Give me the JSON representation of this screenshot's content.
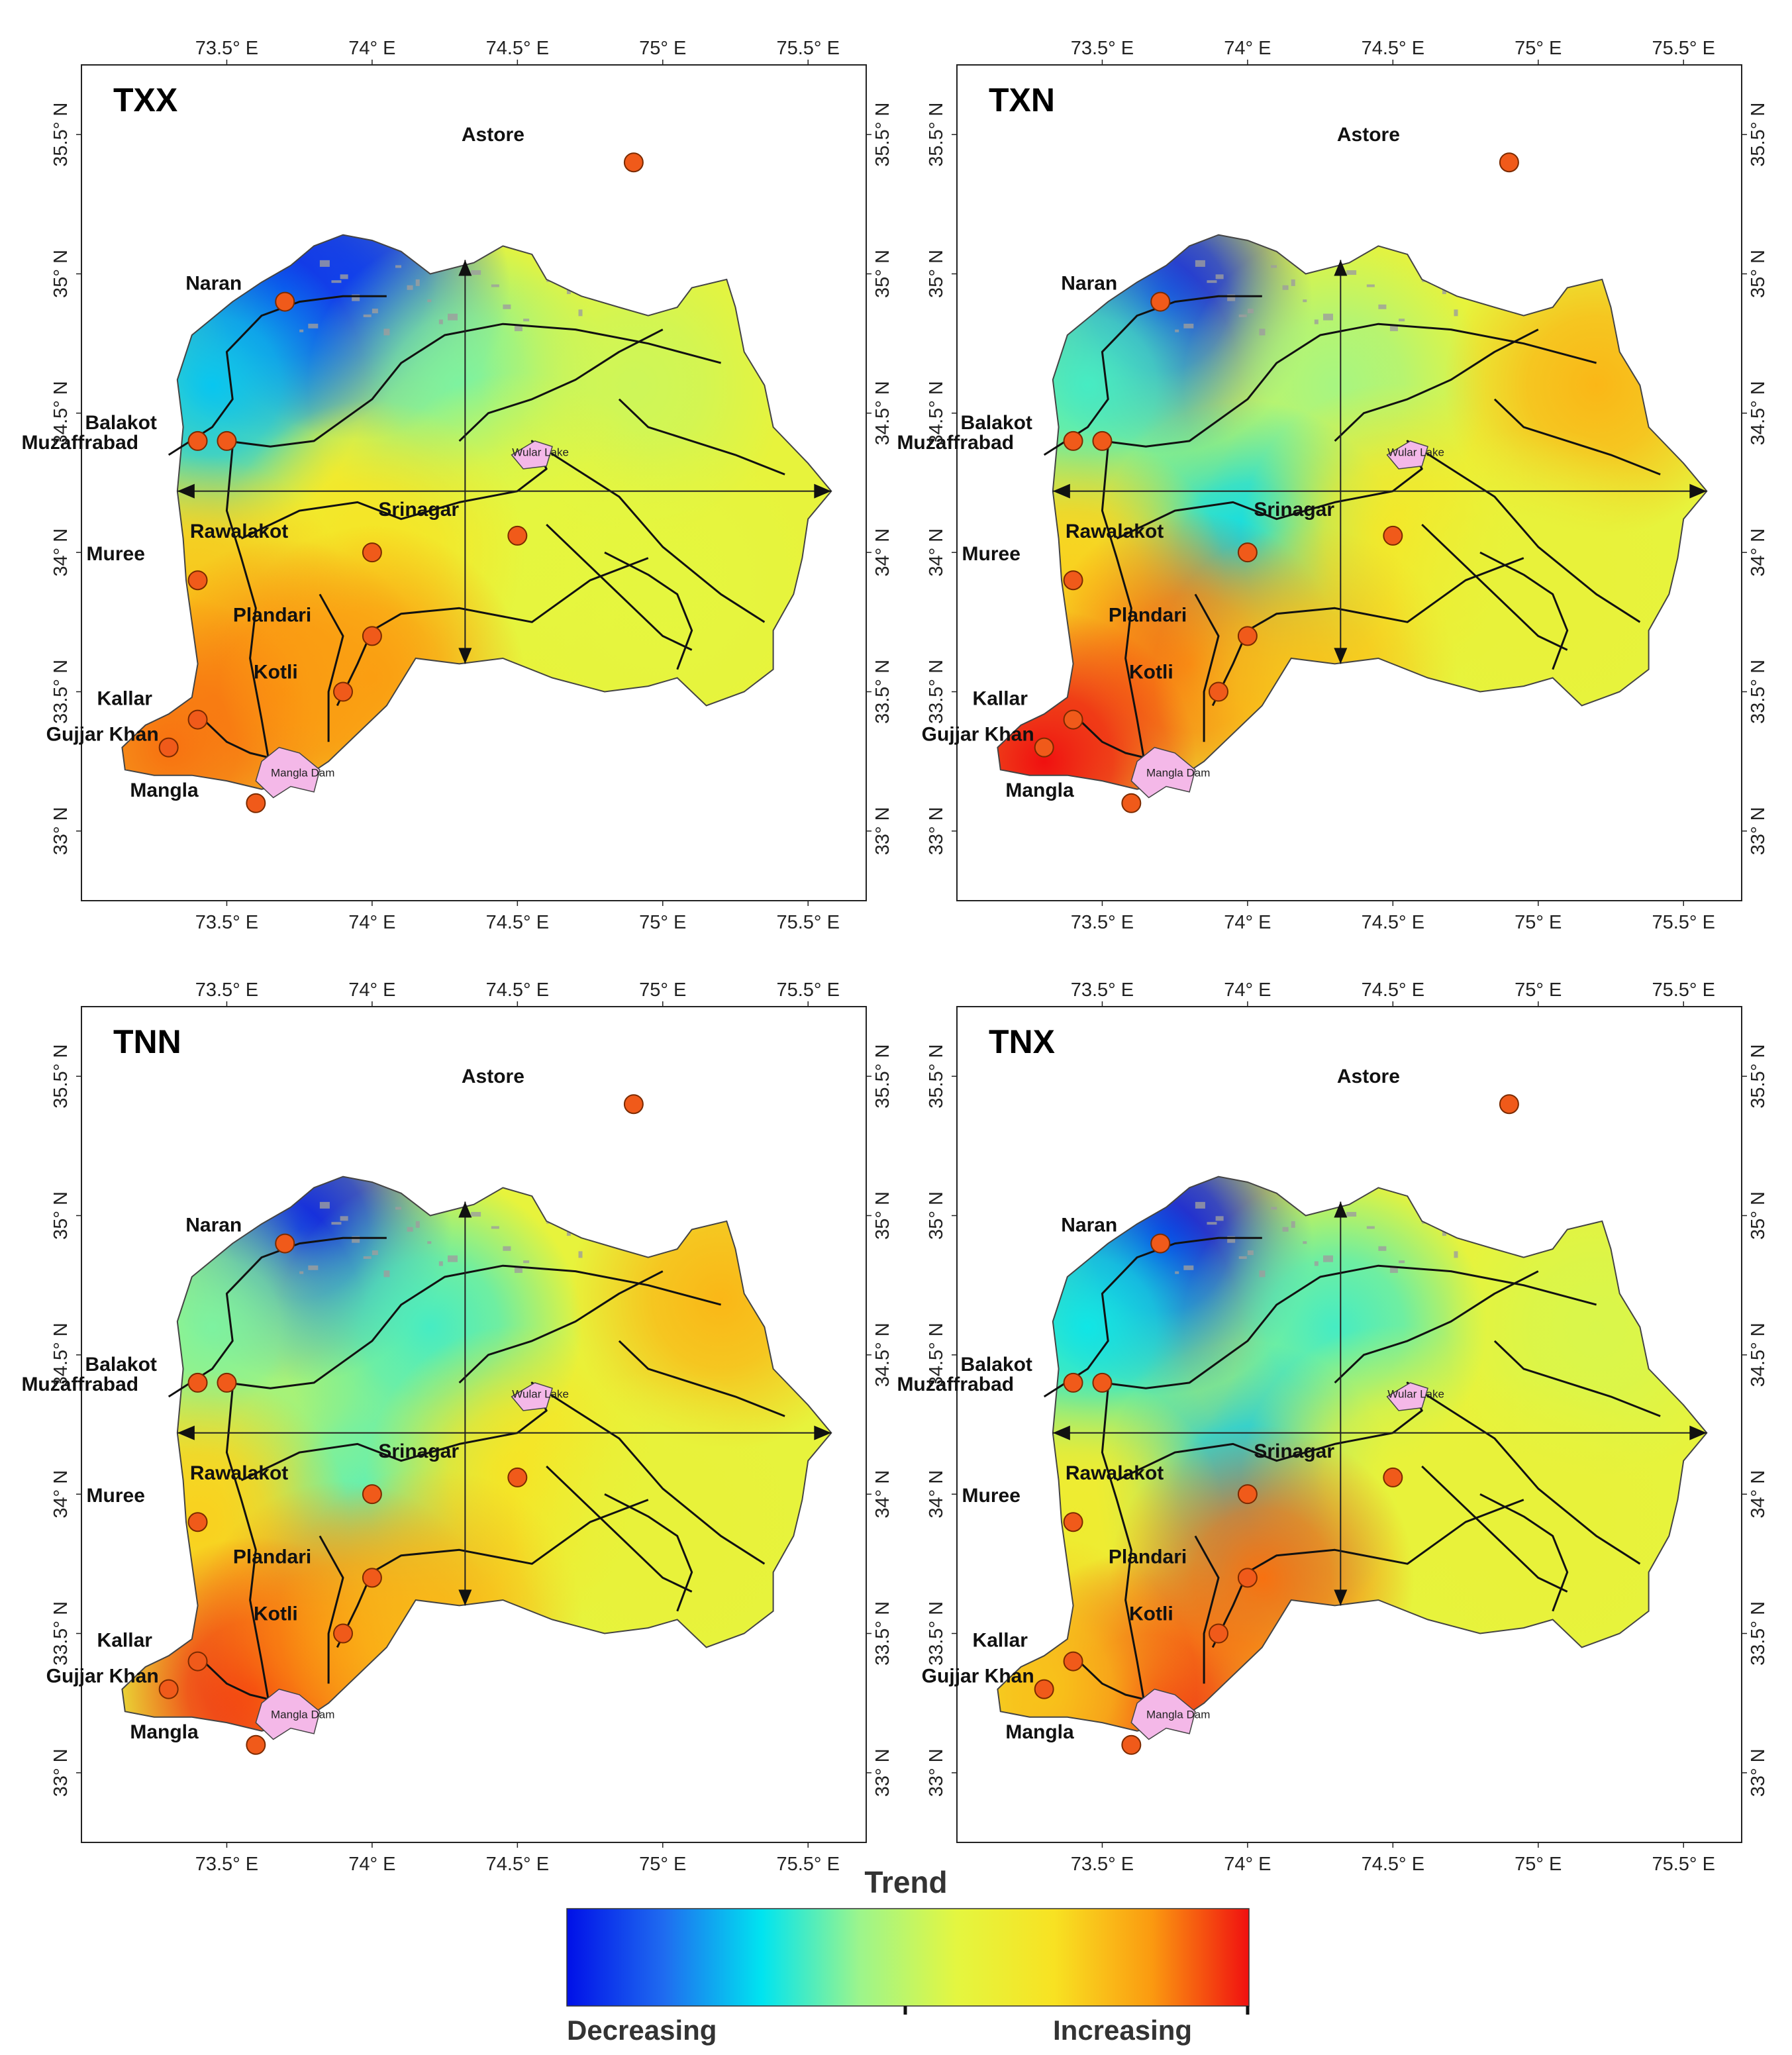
{
  "legend": {
    "title": "Trend",
    "low_label": "Decreasing",
    "high_label": "Increasing",
    "colors": [
      "#0010e8",
      "#1f6cf0",
      "#00e4f0",
      "#9cf58c",
      "#e4f640",
      "#f8e222",
      "#fb9a10",
      "#f01010"
    ]
  },
  "lon_ticks": [
    "73.5° E",
    "74° E",
    "74.5° E",
    "75° E",
    "75.5° E"
  ],
  "lat_ticks": [
    "33° N",
    "33.5° N",
    "34° N",
    "34.5° N",
    "35° N",
    "35.5° N"
  ],
  "lakes": [
    {
      "name": "Wular Lake",
      "lon": 74.55,
      "lat": 34.36
    },
    {
      "name": "Mangla Dam",
      "lon": 73.72,
      "lat": 33.21
    }
  ],
  "stations": [
    {
      "name": "Astore",
      "lon": 74.9,
      "lat": 35.4
    },
    {
      "name": "Naran",
      "lon": 73.7,
      "lat": 34.9
    },
    {
      "name": "Balakot",
      "lon": 73.4,
      "lat": 34.4
    },
    {
      "name": "Muzaffrabad",
      "lon": 73.5,
      "lat": 34.4
    },
    {
      "name": "Srinagar",
      "lon": 74.5,
      "lat": 34.06
    },
    {
      "name": "Rawalakot",
      "lon": 74.0,
      "lat": 34.0
    },
    {
      "name": "Muree",
      "lon": 73.4,
      "lat": 33.9
    },
    {
      "name": "Plandari",
      "lon": 74.0,
      "lat": 33.7
    },
    {
      "name": "Kotli",
      "lon": 73.9,
      "lat": 33.5
    },
    {
      "name": "Kallar",
      "lon": 73.4,
      "lat": 33.4
    },
    {
      "name": "Gujjar Khan",
      "lon": 73.3,
      "lat": 33.3
    },
    {
      "name": "Mangla",
      "lon": 73.6,
      "lat": 33.1
    }
  ],
  "panels": [
    {
      "title": "TXX",
      "trend": [
        {
          "lon": 73.7,
          "lat": 34.95,
          "value": -1.0
        },
        {
          "lon": 73.95,
          "lat": 34.95,
          "value": -0.85
        },
        {
          "lon": 73.45,
          "lat": 34.6,
          "value": -0.5
        },
        {
          "lon": 74.3,
          "lat": 34.6,
          "value": -0.2
        },
        {
          "lon": 74.9,
          "lat": 34.6,
          "value": 0.05
        },
        {
          "lon": 74.5,
          "lat": 34.1,
          "value": 0.15
        },
        {
          "lon": 74.0,
          "lat": 34.0,
          "value": 0.4
        },
        {
          "lon": 73.4,
          "lat": 33.8,
          "value": 0.55
        },
        {
          "lon": 73.7,
          "lat": 33.5,
          "value": 0.75
        },
        {
          "lon": 73.3,
          "lat": 33.3,
          "value": 0.8
        },
        {
          "lon": 74.0,
          "lat": 33.55,
          "value": 0.7
        },
        {
          "lon": 75.0,
          "lat": 33.9,
          "value": 0.15
        }
      ]
    },
    {
      "title": "TXN",
      "trend": [
        {
          "lon": 73.7,
          "lat": 34.9,
          "value": -0.95
        },
        {
          "lon": 73.45,
          "lat": 34.6,
          "value": -0.3
        },
        {
          "lon": 74.3,
          "lat": 34.6,
          "value": -0.1
        },
        {
          "lon": 75.2,
          "lat": 34.6,
          "value": 0.6
        },
        {
          "lon": 74.0,
          "lat": 34.0,
          "value": -0.45
        },
        {
          "lon": 74.5,
          "lat": 34.06,
          "value": 0.35
        },
        {
          "lon": 73.4,
          "lat": 33.9,
          "value": 0.5
        },
        {
          "lon": 73.8,
          "lat": 33.6,
          "value": 0.8
        },
        {
          "lon": 73.3,
          "lat": 33.25,
          "value": 1.0
        },
        {
          "lon": 74.2,
          "lat": 33.55,
          "value": 0.55
        },
        {
          "lon": 75.0,
          "lat": 33.9,
          "value": 0.2
        }
      ]
    },
    {
      "title": "TNN",
      "trend": [
        {
          "lon": 73.75,
          "lat": 34.95,
          "value": -0.95
        },
        {
          "lon": 73.45,
          "lat": 34.6,
          "value": -0.2
        },
        {
          "lon": 74.2,
          "lat": 34.6,
          "value": -0.3
        },
        {
          "lon": 75.2,
          "lat": 34.7,
          "value": 0.6
        },
        {
          "lon": 74.0,
          "lat": 34.0,
          "value": -0.25
        },
        {
          "lon": 74.5,
          "lat": 34.06,
          "value": 0.4
        },
        {
          "lon": 73.4,
          "lat": 33.9,
          "value": 0.5
        },
        {
          "lon": 73.6,
          "lat": 33.3,
          "value": 0.95
        },
        {
          "lon": 73.9,
          "lat": 33.5,
          "value": 0.75
        },
        {
          "lon": 74.2,
          "lat": 33.55,
          "value": 0.6
        },
        {
          "lon": 75.0,
          "lat": 33.9,
          "value": 0.2
        }
      ]
    },
    {
      "title": "TNX",
      "trend": [
        {
          "lon": 73.7,
          "lat": 34.9,
          "value": -1.0
        },
        {
          "lon": 73.45,
          "lat": 34.6,
          "value": -0.4
        },
        {
          "lon": 74.3,
          "lat": 34.6,
          "value": -0.3
        },
        {
          "lon": 75.2,
          "lat": 34.6,
          "value": 0.1
        },
        {
          "lon": 74.0,
          "lat": 34.0,
          "value": -0.5
        },
        {
          "lon": 74.5,
          "lat": 34.06,
          "value": 0.2
        },
        {
          "lon": 73.4,
          "lat": 33.9,
          "value": 0.3
        },
        {
          "lon": 73.65,
          "lat": 33.25,
          "value": 0.95
        },
        {
          "lon": 74.05,
          "lat": 33.7,
          "value": 0.8
        },
        {
          "lon": 73.3,
          "lat": 33.3,
          "value": 0.55
        },
        {
          "lon": 75.0,
          "lat": 33.9,
          "value": 0.2
        }
      ]
    }
  ]
}
